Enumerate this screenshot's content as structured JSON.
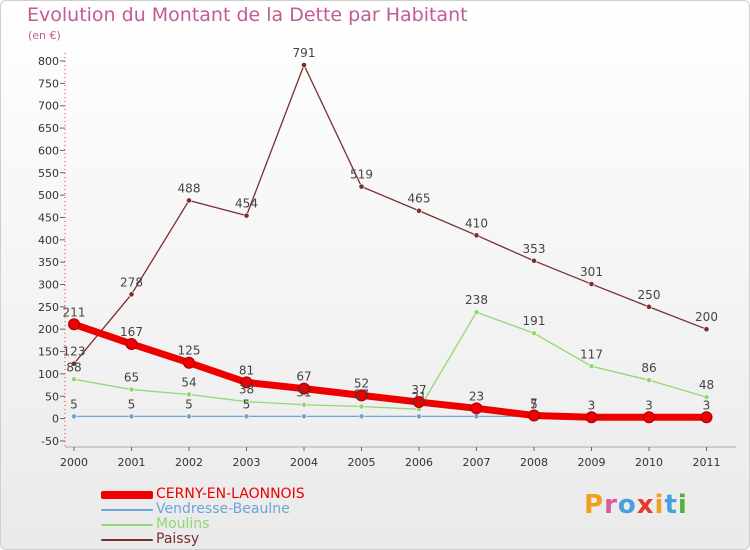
{
  "header": {
    "title": "Evolution du Montant de la Dette par Habitant",
    "subtitle": "(en €)"
  },
  "branding": {
    "logo_text": "Proxiti",
    "letter_colors": [
      "#f0a020",
      "#d85c9a",
      "#4aa0dc",
      "#e83830",
      "#f0a020",
      "#4aa0dc",
      "#58b040"
    ]
  },
  "chart_data": {
    "type": "line",
    "title": "Evolution du Montant de la Dette par Habitant",
    "subtitle": "(en €)",
    "xlabel": "",
    "ylabel": "",
    "x": [
      "2000",
      "2001",
      "2002",
      "2003",
      "2004",
      "2005",
      "2006",
      "2007",
      "2008",
      "2009",
      "2010",
      "2011"
    ],
    "ylim": [
      -50,
      800
    ],
    "yticks": [
      -50,
      0,
      50,
      100,
      150,
      200,
      250,
      300,
      350,
      400,
      450,
      500,
      550,
      600,
      650,
      700,
      750,
      800
    ],
    "grid": false,
    "legend_position": "bottom-left",
    "series": [
      {
        "name": "Paissy",
        "color": "#7a2d2d",
        "values": [
          123,
          278,
          488,
          454,
          791,
          519,
          465,
          410,
          353,
          301,
          250,
          200
        ],
        "labels": [
          "123",
          "278",
          "488",
          "454",
          "791",
          "519",
          "465",
          "410",
          "353",
          "301",
          "250",
          "200"
        ]
      },
      {
        "name": "Moulins",
        "color": "#90d870",
        "values": [
          88,
          65,
          54,
          38,
          31,
          27,
          21,
          238,
          191,
          117,
          86,
          48
        ],
        "labels": [
          "88",
          "65",
          "54",
          "38",
          "31",
          "27",
          "21",
          "238",
          "191",
          "117",
          "86",
          "48"
        ]
      },
      {
        "name": "Vendresse-Beaulne",
        "color": "#6aa6d6",
        "values": [
          5,
          5,
          5,
          5,
          5,
          5,
          5,
          5,
          5,
          5,
          5,
          5
        ],
        "labels": [
          "5",
          "5",
          "5",
          "5",
          "",
          "",
          "",
          "",
          "5",
          "",
          "",
          ""
        ]
      },
      {
        "name": "CERNY-EN-LAONNOIS",
        "color": "#ee0000",
        "values": [
          211,
          167,
          125,
          81,
          67,
          52,
          37,
          23,
          7,
          3,
          3,
          3
        ],
        "labels": [
          "211",
          "167",
          "125",
          "81",
          "67",
          "52",
          "37",
          "23",
          "7",
          "3",
          "3",
          "3"
        ]
      }
    ],
    "legend_order": [
      "CERNY-EN-LAONNOIS",
      "Vendresse-Beaulne",
      "Moulins",
      "Paissy"
    ]
  }
}
